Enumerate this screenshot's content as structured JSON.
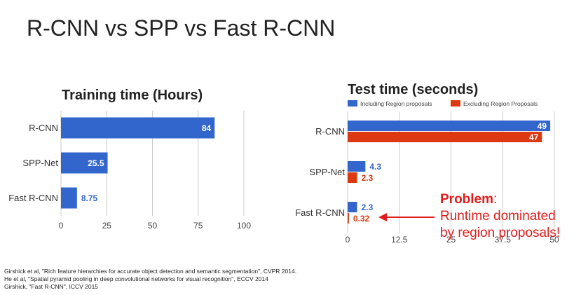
{
  "slide": {
    "title": "R-CNN vs SPP vs Fast R-CNN"
  },
  "colors": {
    "blue": "#3366cc",
    "red": "#dc3912",
    "grid": "#cccccc",
    "problem": "#e21c1c"
  },
  "chart_data": [
    {
      "type": "bar",
      "orientation": "horizontal",
      "title": "Training time (Hours)",
      "categories": [
        "R-CNN",
        "SPP-Net",
        "Fast R-CNN"
      ],
      "series": [
        {
          "values": [
            84,
            25.5,
            8.75
          ],
          "labels": [
            "84",
            "25.5",
            "8.75"
          ],
          "color": "#3366cc"
        }
      ],
      "xlim": [
        0,
        100
      ],
      "xticks": [
        0,
        25,
        50,
        75,
        100
      ],
      "grid": true,
      "legend": "none"
    },
    {
      "type": "bar",
      "orientation": "horizontal",
      "title": "Test time (seconds)",
      "categories": [
        "R-CNN",
        "SPP-Net",
        "Fast R-CNN"
      ],
      "series": [
        {
          "name": "Including Region proposals",
          "values": [
            49,
            4.3,
            2.3
          ],
          "labels": [
            "49",
            "4.3",
            "2.3"
          ],
          "color": "#3366cc"
        },
        {
          "name": "Excluding Region Proposals",
          "values": [
            47,
            2.3,
            0.32
          ],
          "labels": [
            "47",
            "2.3",
            "0.32"
          ],
          "color": "#dc3912"
        }
      ],
      "xlim": [
        0,
        50
      ],
      "xticks": [
        0,
        12.5,
        25,
        37.5,
        50
      ],
      "xtick_labels": [
        "0",
        "12.5",
        "25",
        "37.5",
        "50"
      ],
      "grid": true,
      "legend": "top"
    }
  ],
  "annotation": {
    "bold": "Problem",
    "colon": ":",
    "line2": "Runtime dominated",
    "line3": "by region proposals!"
  },
  "citations": [
    "Girshick et al, \"Rich feature hierarchies for accurate object detection and semantic segmentation\", CVPR 2014.",
    "He et al, \"Spatial pyramid pooling in deep convolutional networks for visual recognition\", ECCV 2014",
    "Girshick, \"Fast R-CNN\", ICCV 2015"
  ]
}
